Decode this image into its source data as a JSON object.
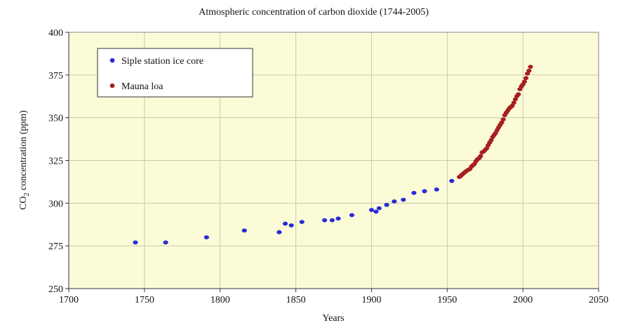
{
  "chart_data": {
    "type": "scatter",
    "title": "Atmospheric concentration of carbon dioxide (1744-2005)",
    "xlabel": "Years",
    "ylabel_main": "CO",
    "ylabel_sub": "2",
    "ylabel_rest": " concentration (ppm)",
    "xlim": [
      1700,
      2050
    ],
    "ylim": [
      250,
      400
    ],
    "xticks": [
      1700,
      1750,
      1800,
      1850,
      1900,
      1950,
      2000,
      2050
    ],
    "yticks": [
      250,
      275,
      300,
      325,
      350,
      375,
      400
    ],
    "grid": true,
    "legend_placement": "top-left",
    "background_color": "#fbfbd8",
    "series": [
      {
        "name": "Siple station ice core",
        "color": "#2b2bd6",
        "x": [
          1744,
          1764,
          1791,
          1816,
          1839,
          1843,
          1847,
          1854,
          1869,
          1874,
          1878,
          1887,
          1900,
          1903,
          1905,
          1910,
          1915,
          1921,
          1928,
          1935,
          1943,
          1953
        ],
        "y": [
          277,
          277,
          280,
          284,
          283,
          288,
          287,
          289,
          290,
          290,
          291,
          293,
          296,
          295,
          297,
          299,
          301,
          302,
          306,
          307,
          308,
          313
        ]
      },
      {
        "name": "Mauna loa",
        "color": "#a81e1e",
        "x": [
          1958,
          1959,
          1960,
          1961,
          1962,
          1963,
          1964,
          1965,
          1966,
          1967,
          1968,
          1969,
          1970,
          1971,
          1972,
          1973,
          1974,
          1975,
          1976,
          1977,
          1978,
          1979,
          1980,
          1981,
          1982,
          1983,
          1984,
          1985,
          1986,
          1987,
          1988,
          1989,
          1990,
          1991,
          1992,
          1993,
          1994,
          1995,
          1996,
          1997,
          1998,
          1999,
          2000,
          2001,
          2002,
          2003,
          2004,
          2005
        ],
        "y": [
          315.3,
          316.0,
          316.9,
          317.6,
          318.4,
          319.0,
          319.6,
          320.0,
          321.4,
          322.2,
          323.0,
          324.6,
          325.7,
          326.3,
          327.5,
          329.7,
          330.2,
          331.1,
          332.0,
          333.8,
          335.4,
          336.8,
          338.7,
          339.9,
          341.1,
          342.8,
          344.4,
          345.9,
          347.2,
          349.0,
          351.5,
          352.9,
          354.2,
          355.5,
          356.3,
          357.1,
          358.8,
          360.8,
          362.6,
          363.7,
          366.7,
          368.3,
          369.5,
          371.1,
          373.2,
          375.8,
          377.5,
          379.8
        ]
      }
    ]
  }
}
